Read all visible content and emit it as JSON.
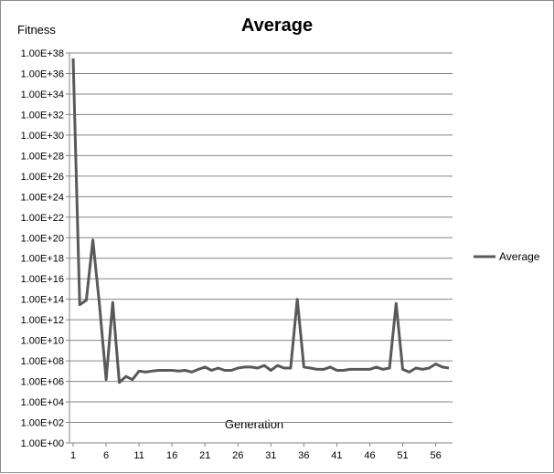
{
  "chart_data": {
    "type": "line",
    "title": "Average",
    "xlabel": "Generation",
    "ylabel": "Fitness",
    "y_scale": "log",
    "y_ticks": [
      "1.00E+00",
      "1.00E+02",
      "1.00E+04",
      "1.00E+06",
      "1.00E+08",
      "1.00E+10",
      "1.00E+12",
      "1.00E+14",
      "1.00E+16",
      "1.00E+18",
      "1.00E+20",
      "1.00E+22",
      "1.00E+24",
      "1.00E+26",
      "1.00E+28",
      "1.00E+30",
      "1.00E+32",
      "1.00E+34",
      "1.00E+36",
      "1.00E+38"
    ],
    "y_tick_exponents": [
      0,
      2,
      4,
      6,
      8,
      10,
      12,
      14,
      16,
      18,
      20,
      22,
      24,
      26,
      28,
      30,
      32,
      34,
      36,
      38
    ],
    "ylim": [
      1,
      1e+38
    ],
    "x_ticks": [
      1,
      6,
      11,
      16,
      21,
      26,
      31,
      36,
      41,
      46,
      51,
      56
    ],
    "xlim": [
      1,
      58
    ],
    "grid": true,
    "legend_position": "right",
    "series": [
      {
        "name": "Average",
        "color": "#595959",
        "x": [
          1,
          2,
          3,
          4,
          5,
          6,
          7,
          8,
          9,
          10,
          11,
          12,
          13,
          14,
          15,
          16,
          17,
          18,
          19,
          20,
          21,
          22,
          23,
          24,
          25,
          26,
          27,
          28,
          29,
          30,
          31,
          32,
          33,
          34,
          35,
          36,
          37,
          38,
          39,
          40,
          41,
          42,
          43,
          44,
          45,
          46,
          47,
          48,
          49,
          50,
          51,
          52,
          53,
          54,
          55,
          56,
          57,
          58
        ],
        "values": [
          3e+37,
          30000000000000.0,
          80000000000000.0,
          6e+19,
          30000000000000.0,
          1500000.0,
          50000000000000.0,
          800000.0,
          3000000.0,
          1500000.0,
          10000000.0,
          8000000.0,
          10000000.0,
          12000000.0,
          12000000.0,
          12000000.0,
          10000000.0,
          12000000.0,
          8000000.0,
          15000000.0,
          25000000.0,
          12000000.0,
          20000000.0,
          12000000.0,
          12000000.0,
          20000000.0,
          25000000.0,
          25000000.0,
          20000000.0,
          35000000.0,
          12000000.0,
          35000000.0,
          20000000.0,
          20000000.0,
          100000000000000.0,
          25000000.0,
          20000000.0,
          15000000.0,
          15000000.0,
          25000000.0,
          12000000.0,
          12000000.0,
          15000000.0,
          15000000.0,
          15000000.0,
          15000000.0,
          25000000.0,
          15000000.0,
          20000000.0,
          40000000000000.0,
          15000000.0,
          8000000.0,
          20000000.0,
          15000000.0,
          20000000.0,
          50000000.0,
          25000000.0,
          20000000.0
        ]
      }
    ]
  }
}
